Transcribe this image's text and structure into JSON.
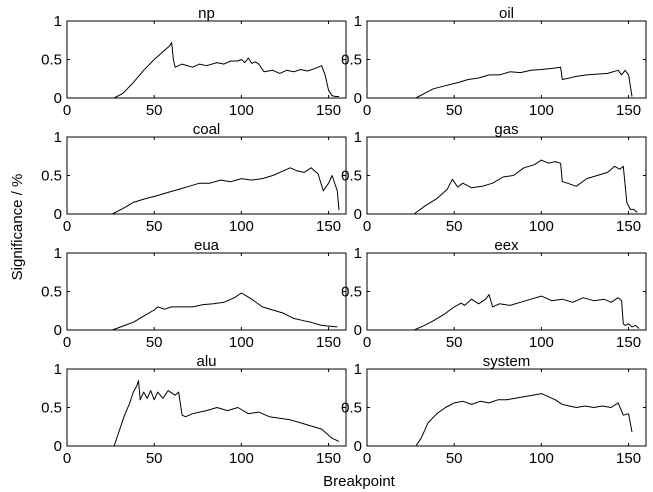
{
  "chart_data": {
    "type": "line",
    "xlabel": "Breakpoint",
    "ylabel": "Significance / %",
    "xlim": [
      0,
      160
    ],
    "ylim": [
      0,
      1
    ],
    "xticks": [
      0,
      50,
      100,
      150
    ],
    "yticks": [
      0,
      0.5,
      1
    ],
    "grid": false,
    "panels": [
      {
        "title": "np",
        "x": [
          27,
          32,
          38,
          44,
          50,
          55,
          59,
          60,
          61,
          62,
          66,
          72,
          76,
          80,
          86,
          90,
          94,
          98,
          100,
          102,
          104,
          106,
          108,
          110,
          113,
          118,
          122,
          126,
          130,
          134,
          138,
          142,
          146,
          148,
          150,
          152,
          154,
          156
        ],
        "y": [
          0,
          0.06,
          0.2,
          0.36,
          0.5,
          0.6,
          0.68,
          0.72,
          0.5,
          0.4,
          0.44,
          0.4,
          0.44,
          0.42,
          0.46,
          0.44,
          0.48,
          0.48,
          0.5,
          0.46,
          0.52,
          0.45,
          0.47,
          0.44,
          0.34,
          0.36,
          0.32,
          0.36,
          0.34,
          0.37,
          0.35,
          0.38,
          0.42,
          0.3,
          0.1,
          0.03,
          0.02,
          0.02
        ]
      },
      {
        "title": "oil",
        "x": [
          28,
          33,
          38,
          45,
          52,
          58,
          64,
          70,
          76,
          82,
          88,
          94,
          100,
          104,
          108,
          111,
          112,
          114,
          120,
          126,
          132,
          138,
          144,
          146,
          148,
          150,
          152
        ],
        "y": [
          0,
          0.06,
          0.12,
          0.16,
          0.2,
          0.24,
          0.26,
          0.3,
          0.3,
          0.34,
          0.33,
          0.36,
          0.37,
          0.38,
          0.39,
          0.4,
          0.24,
          0.25,
          0.28,
          0.3,
          0.31,
          0.32,
          0.36,
          0.3,
          0.36,
          0.3,
          0.02
        ]
      },
      {
        "title": "coal",
        "x": [
          26,
          32,
          38,
          45,
          52,
          58,
          64,
          70,
          76,
          82,
          88,
          94,
          100,
          106,
          112,
          118,
          124,
          128,
          132,
          136,
          140,
          144,
          147,
          150,
          152,
          155,
          156
        ],
        "y": [
          0,
          0.07,
          0.15,
          0.2,
          0.24,
          0.28,
          0.32,
          0.36,
          0.4,
          0.4,
          0.44,
          0.42,
          0.46,
          0.44,
          0.46,
          0.5,
          0.56,
          0.6,
          0.56,
          0.54,
          0.6,
          0.52,
          0.3,
          0.4,
          0.5,
          0.3,
          0.05
        ]
      },
      {
        "title": "gas",
        "x": [
          27,
          33,
          40,
          46,
          49,
          52,
          55,
          60,
          66,
          72,
          78,
          84,
          90,
          96,
          100,
          104,
          108,
          111,
          112,
          115,
          120,
          126,
          132,
          138,
          142,
          145,
          147,
          149,
          151,
          153,
          155
        ],
        "y": [
          0,
          0.1,
          0.2,
          0.32,
          0.45,
          0.35,
          0.4,
          0.34,
          0.36,
          0.4,
          0.48,
          0.5,
          0.6,
          0.64,
          0.7,
          0.66,
          0.68,
          0.66,
          0.42,
          0.4,
          0.36,
          0.46,
          0.5,
          0.54,
          0.62,
          0.58,
          0.62,
          0.15,
          0.06,
          0.06,
          0.02
        ]
      },
      {
        "title": "eua",
        "x": [
          26,
          32,
          38,
          44,
          50,
          52,
          56,
          60,
          66,
          72,
          78,
          84,
          90,
          96,
          100,
          103,
          106,
          112,
          118,
          124,
          130,
          136,
          140,
          146,
          150,
          155
        ],
        "y": [
          0,
          0.05,
          0.1,
          0.18,
          0.26,
          0.3,
          0.27,
          0.3,
          0.3,
          0.3,
          0.33,
          0.34,
          0.36,
          0.42,
          0.48,
          0.44,
          0.4,
          0.3,
          0.26,
          0.22,
          0.15,
          0.12,
          0.1,
          0.06,
          0.05,
          0.04
        ]
      },
      {
        "title": "eex",
        "x": [
          27,
          33,
          38,
          44,
          50,
          54,
          56,
          60,
          64,
          68,
          70,
          72,
          76,
          82,
          88,
          94,
          100,
          106,
          112,
          118,
          124,
          130,
          136,
          140,
          144,
          146,
          147,
          148,
          150,
          152,
          154,
          156
        ],
        "y": [
          0,
          0.06,
          0.12,
          0.2,
          0.3,
          0.35,
          0.32,
          0.4,
          0.34,
          0.4,
          0.46,
          0.3,
          0.34,
          0.32,
          0.36,
          0.4,
          0.44,
          0.38,
          0.4,
          0.36,
          0.42,
          0.38,
          0.4,
          0.36,
          0.42,
          0.38,
          0.08,
          0.06,
          0.08,
          0.04,
          0.06,
          0.02
        ]
      },
      {
        "title": "alu",
        "x": [
          27,
          30,
          33,
          36,
          38,
          40,
          41,
          42,
          44,
          46,
          48,
          50,
          52,
          55,
          58,
          62,
          64,
          66,
          68,
          70,
          72,
          76,
          80,
          86,
          92,
          98,
          104,
          110,
          116,
          122,
          128,
          134,
          140,
          146,
          150,
          152,
          154,
          156
        ],
        "y": [
          0,
          0.2,
          0.4,
          0.56,
          0.7,
          0.78,
          0.85,
          0.6,
          0.7,
          0.62,
          0.72,
          0.6,
          0.7,
          0.62,
          0.72,
          0.66,
          0.7,
          0.4,
          0.38,
          0.4,
          0.42,
          0.44,
          0.46,
          0.5,
          0.46,
          0.5,
          0.42,
          0.44,
          0.38,
          0.36,
          0.34,
          0.3,
          0.26,
          0.22,
          0.14,
          0.1,
          0.08,
          0.06
        ]
      },
      {
        "title": "system",
        "x": [
          28,
          31,
          35,
          40,
          45,
          50,
          55,
          60,
          65,
          70,
          75,
          80,
          85,
          90,
          95,
          100,
          104,
          108,
          112,
          116,
          120,
          125,
          130,
          135,
          140,
          144,
          147,
          150,
          152
        ],
        "y": [
          0,
          0.1,
          0.3,
          0.42,
          0.5,
          0.56,
          0.58,
          0.54,
          0.58,
          0.56,
          0.6,
          0.6,
          0.62,
          0.64,
          0.66,
          0.68,
          0.64,
          0.6,
          0.54,
          0.52,
          0.5,
          0.52,
          0.5,
          0.52,
          0.5,
          0.56,
          0.4,
          0.42,
          0.18
        ]
      }
    ]
  }
}
